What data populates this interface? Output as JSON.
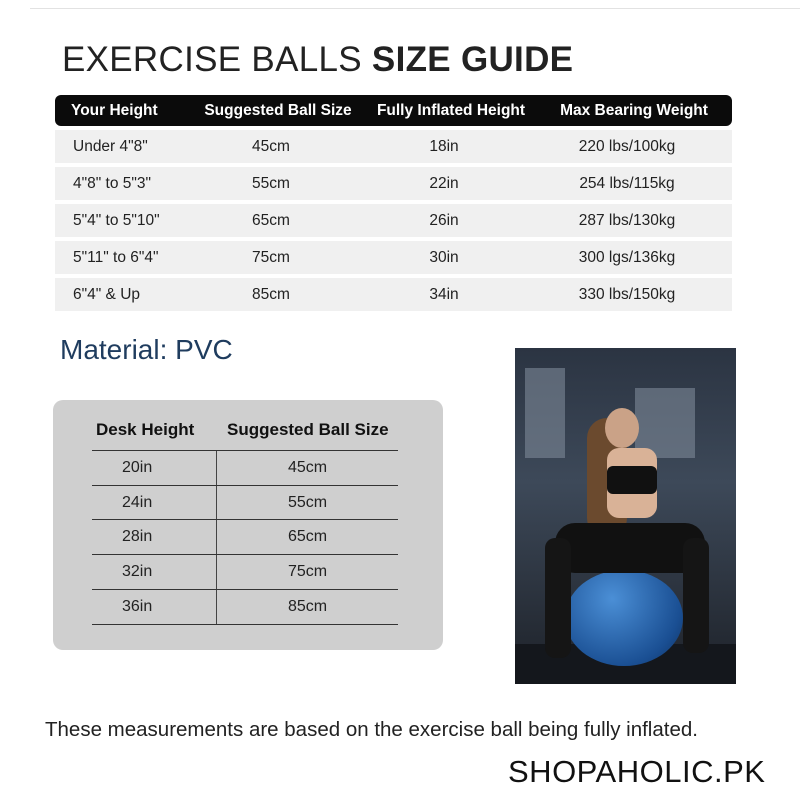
{
  "title": {
    "light": "EXERCISE BALLS",
    "bold": "SIZE GUIDE"
  },
  "size_table": {
    "headers": [
      "Your Height",
      "Suggested Ball Size",
      "Fully Inflated Height",
      "Max Bearing Weight"
    ],
    "rows": [
      [
        "Under 4\"8\"",
        "45cm",
        "18in",
        "220 lbs/100kg"
      ],
      [
        "4\"8\" to 5\"3\"",
        "55cm",
        "22in",
        "254 lbs/115kg"
      ],
      [
        "5\"4\" to 5\"10\"",
        "65cm",
        "26in",
        "287 lbs/130kg"
      ],
      [
        "5\"11\" to 6\"4\"",
        "75cm",
        "30in",
        "300 lgs/136kg"
      ],
      [
        "6\"4\" & Up",
        "85cm",
        "34in",
        "330 lbs/150kg"
      ]
    ]
  },
  "material": "Material: PVC",
  "desk_table": {
    "headers": [
      "Desk Height",
      "Suggested Ball Size"
    ],
    "rows": [
      [
        "20in",
        "45cm"
      ],
      [
        "24in",
        "55cm"
      ],
      [
        "28in",
        "65cm"
      ],
      [
        "32in",
        "75cm"
      ],
      [
        "36in",
        "85cm"
      ]
    ]
  },
  "footer_note": "These measurements are based on the exercise ball being fully inflated.",
  "brand": "SHOPAHOLIC.PK",
  "colors": {
    "header_bg": "#0b0b0b",
    "row_bg": "#f0f0f0",
    "material": "#1f3c5e",
    "desk_box": "#cfcfcf",
    "ball": "#2a6bb8"
  }
}
